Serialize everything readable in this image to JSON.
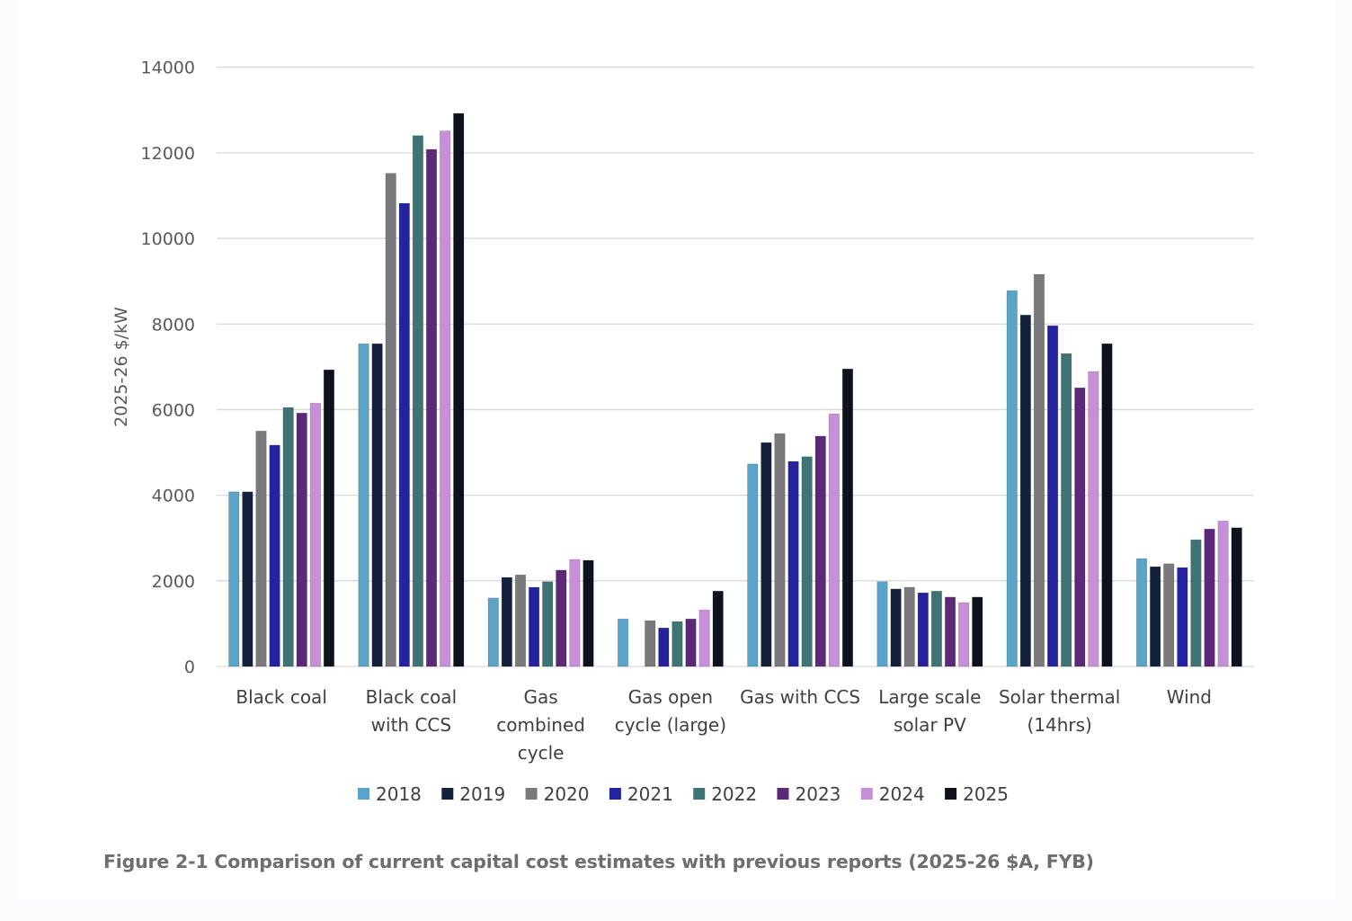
{
  "caption": "Figure 2-1 Comparison of current capital cost estimates with previous reports (2025-26 $A, FYB)",
  "chart_data": {
    "type": "bar",
    "title": "",
    "xlabel": "",
    "ylabel": "2025-26 $/kW",
    "ylim": [
      0,
      14000
    ],
    "yticks": [
      0,
      2000,
      4000,
      6000,
      8000,
      10000,
      12000,
      14000
    ],
    "grid": true,
    "legend_position": "bottom",
    "categories": [
      [
        "Black coal"
      ],
      [
        "Black coal",
        "with CCS"
      ],
      [
        "Gas",
        "combined",
        "cycle"
      ],
      [
        "Gas open",
        "cycle (large)"
      ],
      [
        "Gas with CCS"
      ],
      [
        "Large scale",
        "solar PV"
      ],
      [
        "Solar thermal",
        "(14hrs)"
      ],
      [
        "Wind"
      ]
    ],
    "series": [
      {
        "name": "2018",
        "color": "#5ba3c9",
        "values": [
          4080,
          7540,
          1600,
          1110,
          4730,
          1980,
          8780,
          2520
        ]
      },
      {
        "name": "2019",
        "color": "#14213d",
        "values": [
          4080,
          7540,
          2080,
          null,
          5230,
          1810,
          8210,
          2330
        ]
      },
      {
        "name": "2020",
        "color": "#7a7a7e",
        "values": [
          5500,
          11520,
          2140,
          1070,
          5440,
          1850,
          9160,
          2400
        ]
      },
      {
        "name": "2021",
        "color": "#2323a0",
        "values": [
          5170,
          10820,
          1850,
          900,
          4790,
          1720,
          7960,
          2310
        ]
      },
      {
        "name": "2022",
        "color": "#3f7474",
        "values": [
          6050,
          12400,
          1980,
          1050,
          4900,
          1760,
          7310,
          2960
        ]
      },
      {
        "name": "2023",
        "color": "#5e2878",
        "values": [
          5920,
          12080,
          2250,
          1110,
          5380,
          1620,
          6510,
          3210
        ]
      },
      {
        "name": "2024",
        "color": "#c68fd8",
        "values": [
          6150,
          12510,
          2500,
          1320,
          5900,
          1490,
          6890,
          3400
        ]
      },
      {
        "name": "2025",
        "color": "#0d121c",
        "values": [
          6930,
          12920,
          2480,
          1760,
          6950,
          1620,
          7540,
          3240
        ]
      }
    ]
  }
}
